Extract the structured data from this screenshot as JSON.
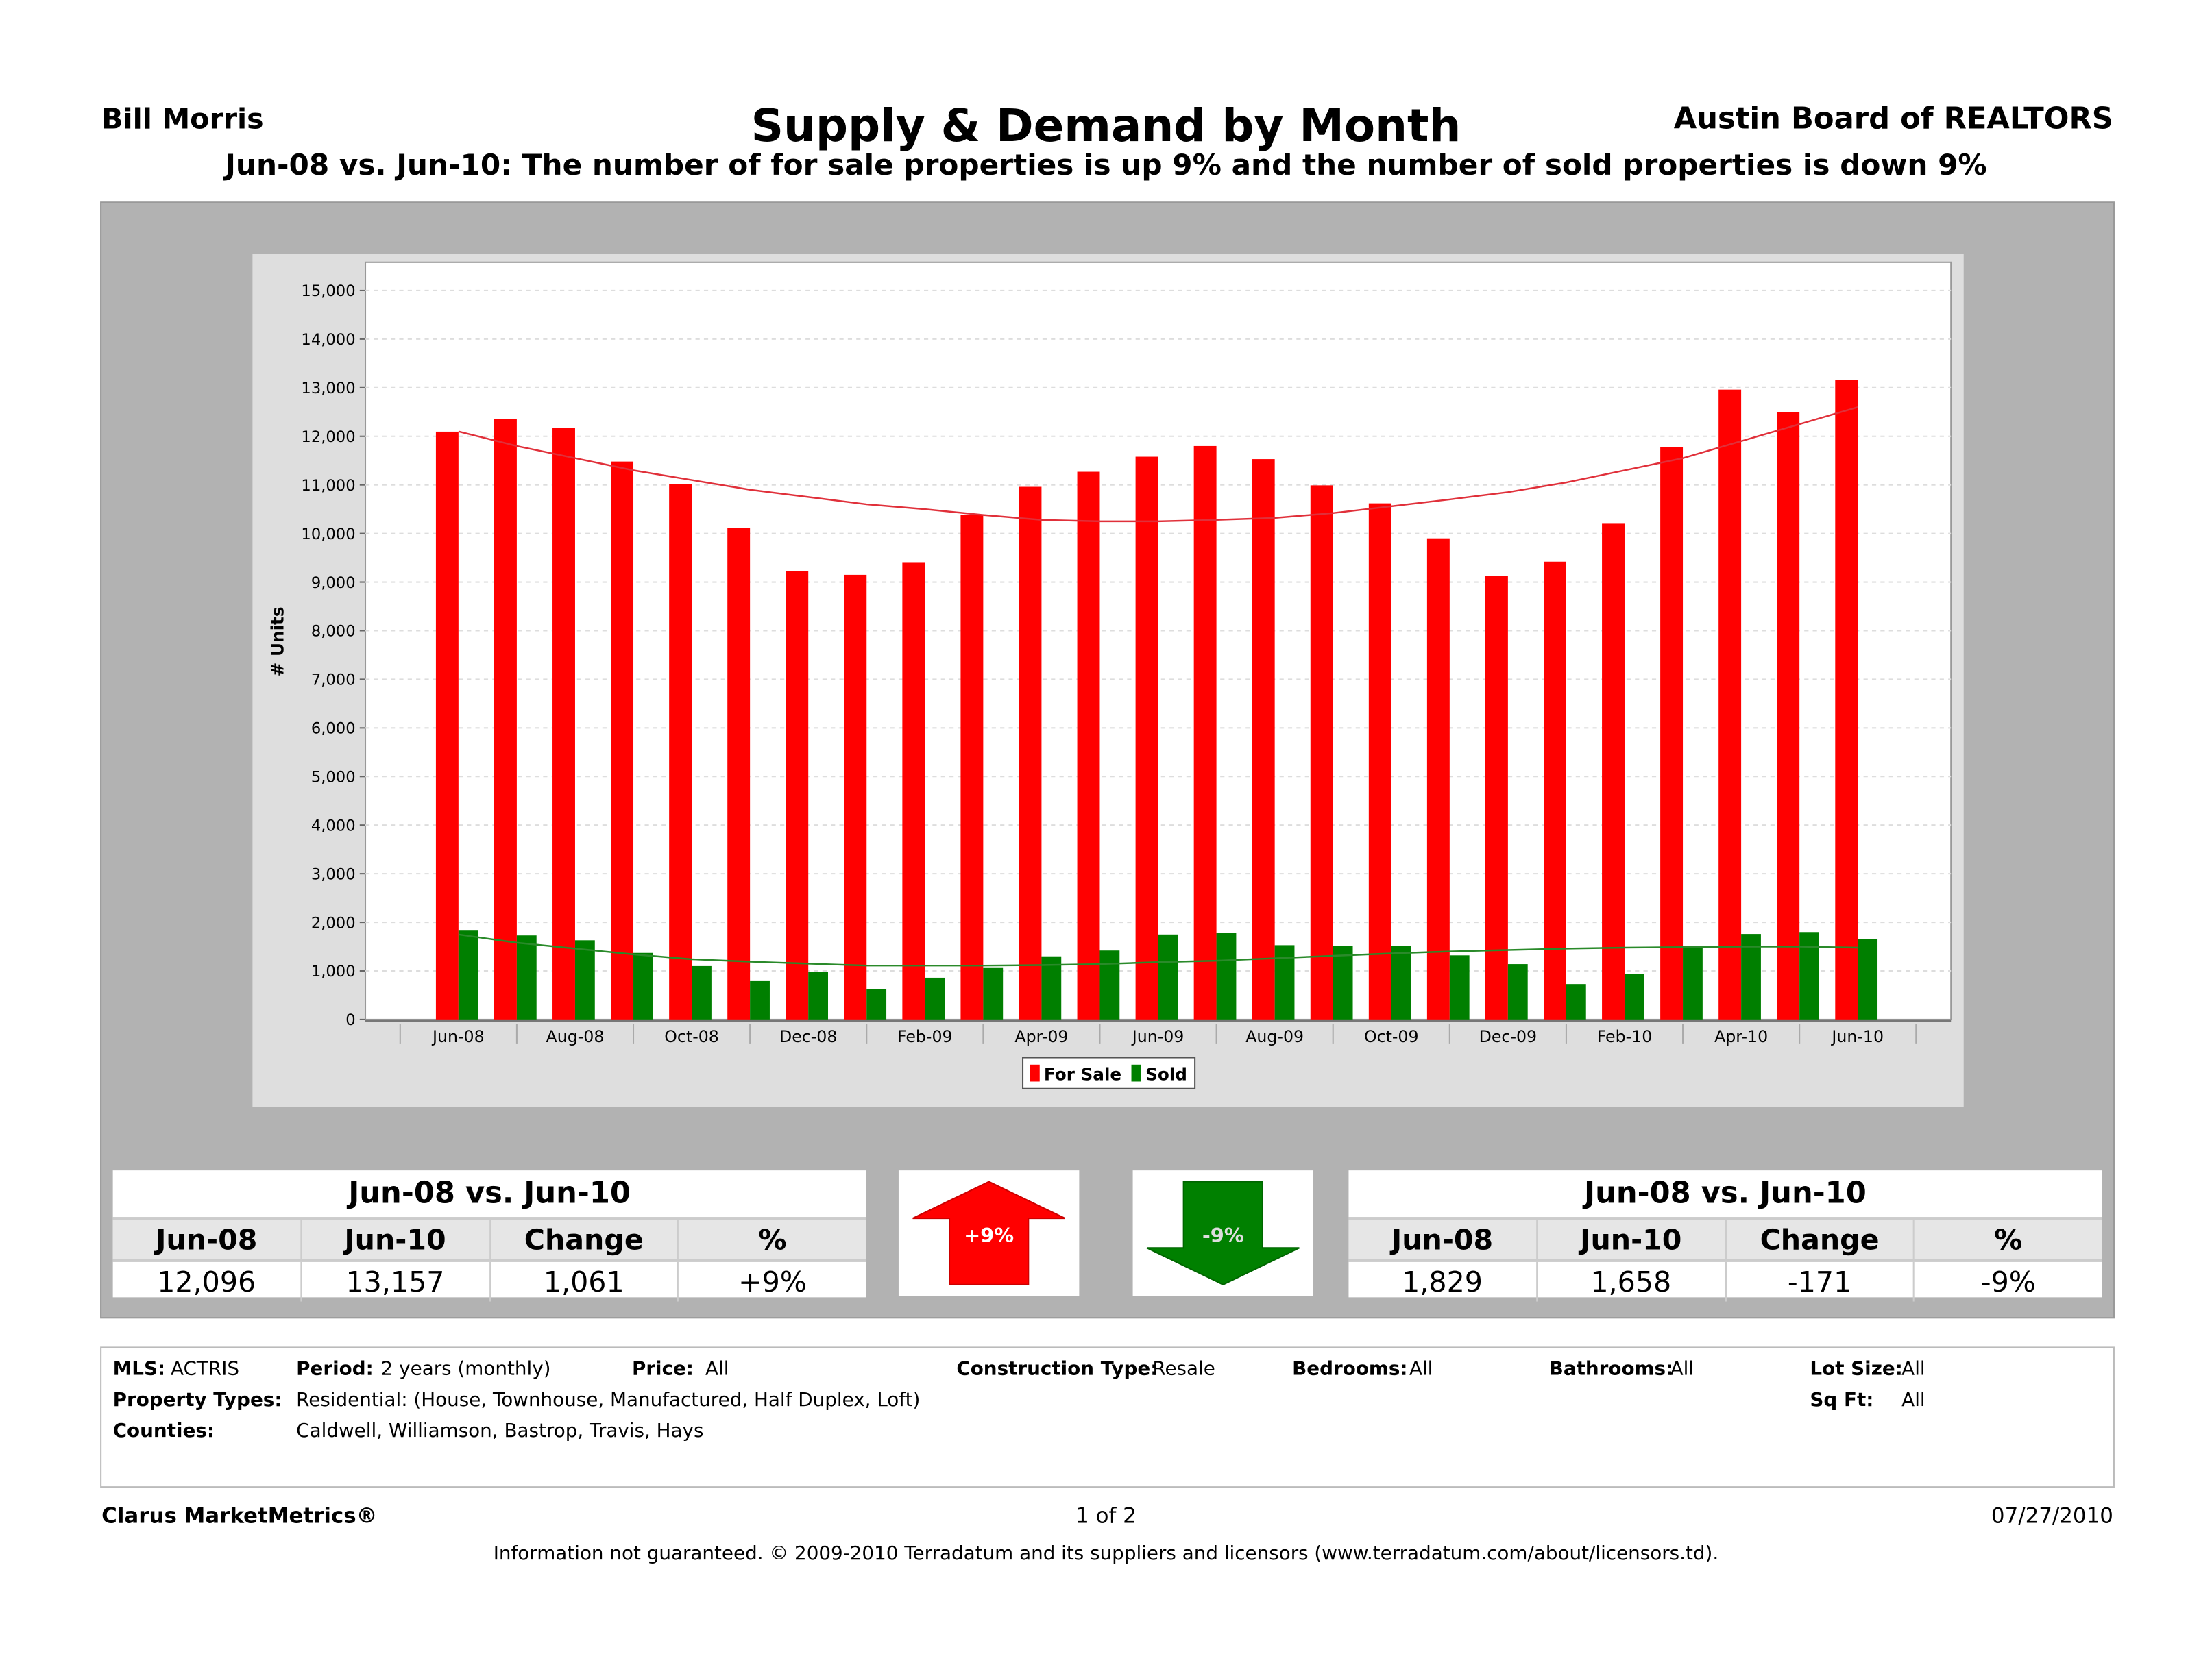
{
  "header": {
    "agent": "Bill Morris",
    "title": "Supply & Demand by Month",
    "board": "Austin Board of REALTORS",
    "subtitle": "Jun-08 vs. Jun-10:  The number of for sale properties is up 9% and the number of sold properties is down 9%"
  },
  "chart_data": {
    "type": "bar",
    "ylabel": "# Units",
    "ylim": [
      0,
      15000
    ],
    "yticks": [
      "0",
      "1,000",
      "2,000",
      "3,000",
      "4,000",
      "5,000",
      "6,000",
      "7,000",
      "8,000",
      "9,000",
      "10,000",
      "11,000",
      "12,000",
      "13,000",
      "14,000",
      "15,000"
    ],
    "grid": true,
    "legend_position": "bottom",
    "categories": [
      "Jun-08",
      "Jul-08",
      "Aug-08",
      "Sep-08",
      "Oct-08",
      "Nov-08",
      "Dec-08",
      "Jan-09",
      "Feb-09",
      "Mar-09",
      "Apr-09",
      "May-09",
      "Jun-09",
      "Jul-09",
      "Aug-09",
      "Sep-09",
      "Oct-09",
      "Nov-09",
      "Dec-09",
      "Jan-10",
      "Feb-10",
      "Mar-10",
      "Apr-10",
      "May-10",
      "Jun-10"
    ],
    "tick_labels": [
      "Jun-08",
      "Aug-08",
      "Oct-08",
      "Dec-08",
      "Feb-09",
      "Apr-09",
      "Jun-09",
      "Aug-09",
      "Oct-09",
      "Dec-09",
      "Feb-10",
      "Apr-10",
      "Jun-10"
    ],
    "series": [
      {
        "name": "For Sale",
        "color": "#ff0000",
        "values": [
          12096,
          12350,
          12170,
          11480,
          11020,
          10110,
          9230,
          9150,
          9410,
          10380,
          10960,
          11270,
          11580,
          11800,
          11530,
          10990,
          10620,
          9900,
          9130,
          9420,
          10200,
          11780,
          12960,
          12490,
          13157
        ],
        "trend": [
          12100,
          11800,
          11550,
          11300,
          11100,
          10900,
          10750,
          10600,
          10500,
          10380,
          10280,
          10250,
          10250,
          10280,
          10320,
          10420,
          10560,
          10700,
          10850,
          11050,
          11300,
          11550,
          11900,
          12250,
          12600
        ]
      },
      {
        "name": "Sold",
        "color": "#007f00",
        "values": [
          1829,
          1730,
          1630,
          1370,
          1100,
          790,
          980,
          620,
          860,
          1060,
          1300,
          1420,
          1750,
          1780,
          1530,
          1510,
          1520,
          1320,
          1140,
          730,
          930,
          1500,
          1760,
          1800,
          1658
        ],
        "trend": [
          1750,
          1580,
          1460,
          1340,
          1240,
          1190,
          1150,
          1110,
          1110,
          1110,
          1120,
          1140,
          1180,
          1210,
          1260,
          1310,
          1360,
          1400,
          1430,
          1460,
          1480,
          1490,
          1500,
          1500,
          1480
        ]
      }
    ]
  },
  "for_sale_table": {
    "title": "Jun-08 vs. Jun-10",
    "headers": [
      "Jun-08",
      "Jun-10",
      "Change",
      "%"
    ],
    "values": [
      "12,096",
      "13,157",
      "1,061",
      "+9%"
    ]
  },
  "sold_table": {
    "title": "Jun-08 vs. Jun-10",
    "headers": [
      "Jun-08",
      "Jun-10",
      "Change",
      "%"
    ],
    "values": [
      "1,829",
      "1,658",
      "-171",
      "-9%"
    ]
  },
  "arrows": {
    "up_label": "+9%",
    "down_label": "-9%",
    "up_color": "#ff0000",
    "down_color": "#008000"
  },
  "criteria": {
    "mls_label": "MLS:",
    "mls": "ACTRIS",
    "period_label": "Period:",
    "period": "2 years (monthly)",
    "price_label": "Price:",
    "price": "All",
    "construction_label": "Construction Type:",
    "construction": "Resale",
    "bedrooms_label": "Bedrooms:",
    "bedrooms": "All",
    "bathrooms_label": "Bathrooms:",
    "bathrooms": "All",
    "lot_label": "Lot Size:",
    "lot": "All",
    "types_label": "Property Types:",
    "types": "Residential: (House, Townhouse, Manufactured, Half Duplex, Loft)",
    "sqft_label": "Sq Ft:",
    "sqft": "All",
    "counties_label": "Counties:",
    "counties": "Caldwell, Williamson, Bastrop, Travis, Hays"
  },
  "footer": {
    "brand": "Clarus MarketMetrics®",
    "page": "1 of 2",
    "date": "07/27/2010",
    "disclaimer": "Information not guaranteed.  © 2009-2010 Terradatum and its suppliers and licensors (www.terradatum.com/about/licensors.td)."
  }
}
